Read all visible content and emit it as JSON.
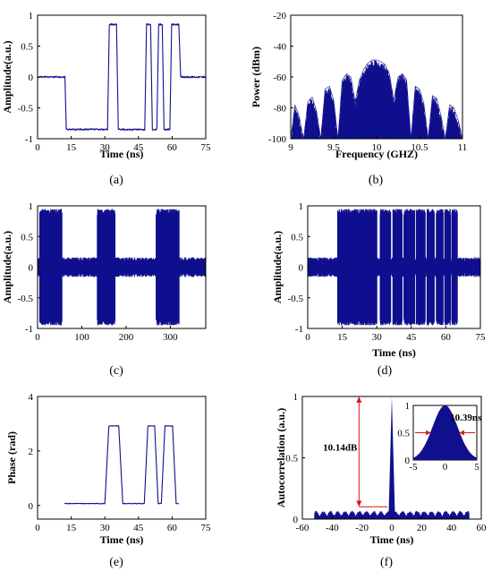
{
  "colors": {
    "signal": "#10108f",
    "annotation": "#dd1111",
    "axis": "#000000"
  },
  "chart_data": [
    {
      "id": "a",
      "type": "line",
      "caption": "(a)",
      "xlabel": "Time (ns)",
      "ylabel": "Amplitude(a.u.)",
      "xlim": [
        0,
        75
      ],
      "ylim": [
        -1,
        1
      ],
      "xticks": [
        0,
        15,
        30,
        45,
        60,
        75
      ],
      "yticks": [
        -1,
        -0.5,
        0,
        0.5,
        1
      ],
      "series": [
        {
          "x": [
            0,
            12.2,
            12.8,
            31.2,
            32.0,
            35.2,
            36.0,
            47.8,
            48.6,
            50.4,
            51.2,
            53.2,
            54.0,
            55.6,
            56.4,
            59.0,
            59.8,
            63.0,
            63.8,
            75
          ],
          "y": [
            0,
            0,
            -0.85,
            -0.85,
            0.85,
            0.85,
            -0.85,
            -0.85,
            0.85,
            0.85,
            -0.85,
            -0.85,
            0.85,
            0.85,
            -0.85,
            -0.85,
            0.85,
            0.85,
            0,
            0
          ]
        }
      ]
    },
    {
      "id": "b",
      "type": "line",
      "caption": "(b)",
      "xlabel": "Frequency (GHZ)",
      "ylabel": "Power (dBm)",
      "xlim": [
        9,
        11
      ],
      "ylim": [
        -100,
        -20
      ],
      "xticks": [
        9,
        9.5,
        10,
        10.5,
        11
      ],
      "yticks": [
        -100,
        -80,
        -60,
        -40,
        -20
      ],
      "series": [
        {
          "x": [
            9.0,
            9.05,
            9.1,
            9.15,
            9.2,
            9.25,
            9.3,
            9.35,
            9.4,
            9.45,
            9.5,
            9.55,
            9.6,
            9.65,
            9.7,
            9.75,
            9.8,
            9.85,
            9.9,
            9.95,
            10.0,
            10.05,
            10.1,
            10.15,
            10.2,
            10.25,
            10.3,
            10.35,
            10.4,
            10.45,
            10.5,
            10.55,
            10.6,
            10.65,
            10.7,
            10.75,
            10.8,
            10.85,
            10.9,
            10.95,
            11.0
          ],
          "y": [
            -100,
            -78,
            -86,
            -100,
            -76,
            -73,
            -82,
            -100,
            -68,
            -66,
            -75,
            -100,
            -62,
            -58,
            -60,
            -76,
            -62,
            -55,
            -51,
            -49,
            -49,
            -50,
            -52,
            -58,
            -75,
            -60,
            -58,
            -62,
            -100,
            -66,
            -68,
            -77,
            -100,
            -72,
            -74,
            -85,
            -100,
            -78,
            -80,
            -88,
            -100
          ]
        }
      ]
    },
    {
      "id": "c",
      "type": "line",
      "caption": "(c)",
      "xlabel": "",
      "ylabel": "Amplitude(a.u.)",
      "xlim": [
        0,
        380
      ],
      "ylim": [
        -1,
        1
      ],
      "xticks": [
        0,
        100,
        200,
        300
      ],
      "yticks": [
        -1,
        -0.5,
        0,
        0.5,
        1
      ],
      "bursts": [
        [
          5,
          55
        ],
        [
          135,
          175
        ],
        [
          268,
          320
        ]
      ]
    },
    {
      "id": "d",
      "type": "line",
      "caption": "(d)",
      "xlabel": "Time (ns)",
      "ylabel": "Amplitude(a.u.)",
      "xlim": [
        0,
        75
      ],
      "ylim": [
        -1,
        1
      ],
      "xticks": [
        0,
        15,
        30,
        45,
        60,
        75
      ],
      "yticks": [
        -1,
        -0.5,
        0,
        0.5,
        1
      ],
      "bursts": [
        [
          13,
          30
        ],
        [
          31.5,
          36
        ],
        [
          37,
          41
        ],
        [
          41.8,
          46.5
        ],
        [
          47.2,
          51
        ],
        [
          51.8,
          55
        ],
        [
          55.8,
          58.8
        ],
        [
          59.5,
          62
        ],
        [
          62.6,
          65
        ]
      ]
    },
    {
      "id": "e",
      "type": "line",
      "caption": "(e)",
      "xlabel": "Time (ns)",
      "ylabel": "Phase (rad)",
      "xlim": [
        0,
        75
      ],
      "ylim": [
        -0.5,
        4
      ],
      "xticks": [
        0,
        15,
        30,
        45,
        60,
        75
      ],
      "yticks": [
        0,
        2,
        4
      ],
      "series": [
        {
          "x": [
            12,
            30,
            31.8,
            36.2,
            38,
            47.6,
            49.2,
            52.2,
            53.8,
            55.2,
            56.8,
            60.2,
            61.8,
            63
          ],
          "y": [
            0.07,
            0.07,
            2.92,
            2.92,
            0.07,
            0.07,
            2.92,
            2.92,
            0.07,
            0.07,
            2.92,
            2.92,
            0.07,
            0.07
          ]
        }
      ]
    },
    {
      "id": "f",
      "type": "line",
      "caption": "(f)",
      "xlabel": "Time (ns)",
      "ylabel": "Autocorrelation (a.u.)",
      "xlim": [
        -60,
        60
      ],
      "ylim": [
        0,
        1
      ],
      "xticks": [
        -60,
        -40,
        -20,
        0,
        20,
        40,
        60
      ],
      "yticks": [
        0,
        0.5,
        1
      ],
      "annotations": {
        "sidelobe_label": "10.14dB",
        "fwhm_label": "10.39ns"
      },
      "inset": {
        "xlim": [
          -5,
          5
        ],
        "ylim": [
          0,
          1
        ],
        "xticks": [
          -5,
          0,
          5
        ],
        "yticks": [
          0,
          0.5,
          1
        ]
      }
    }
  ]
}
